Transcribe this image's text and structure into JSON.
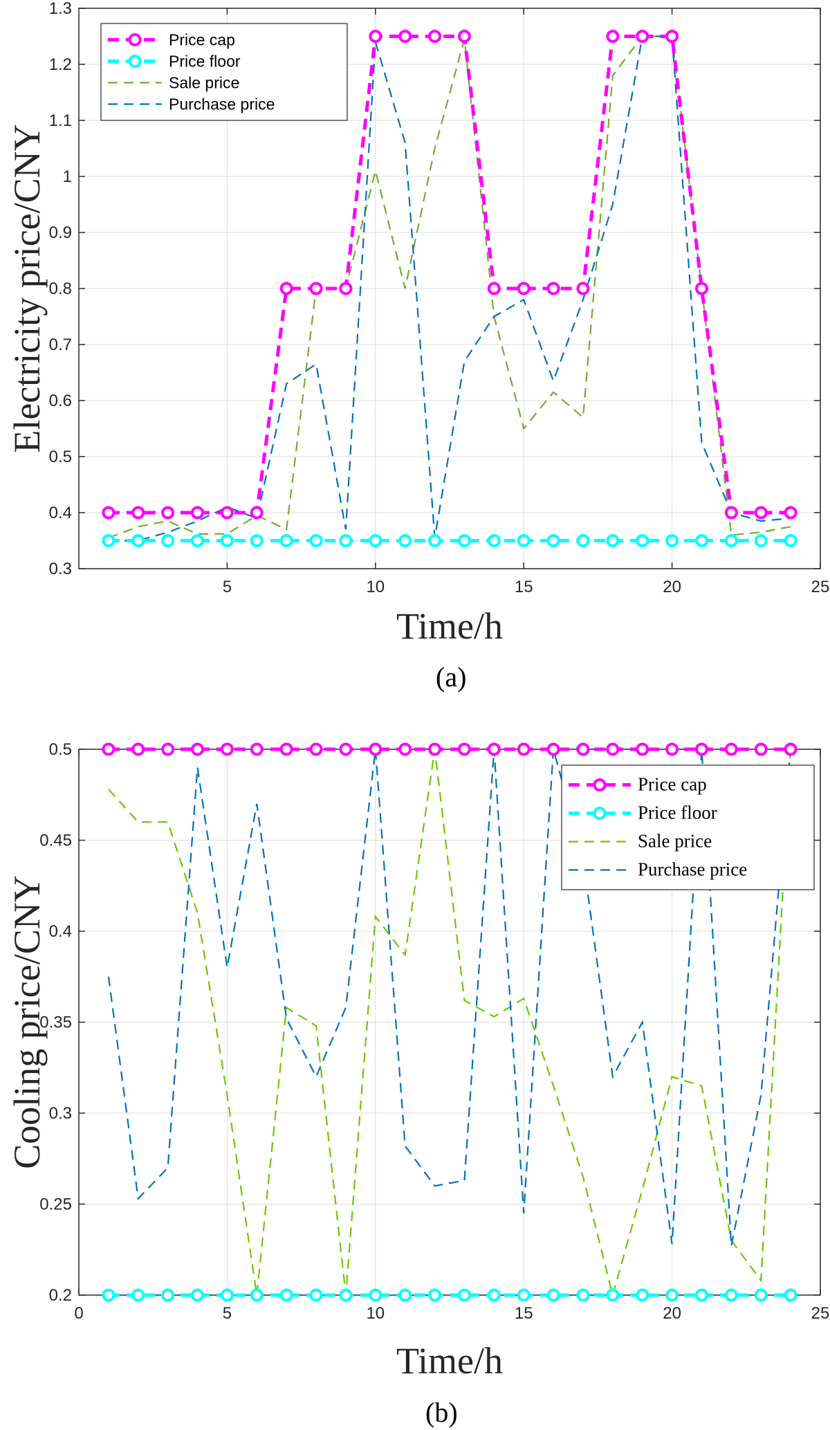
{
  "chart_data": [
    {
      "type": "line",
      "xlabel": "Time/h",
      "ylabel": "Electricity price/CNY",
      "xlim": [
        0,
        25
      ],
      "ylim": [
        0.3,
        1.3
      ],
      "xticks": [
        "5",
        "10",
        "15",
        "20",
        "25"
      ],
      "yticks": [
        "0.3",
        "0.4",
        "0.5",
        "0.6",
        "0.7",
        "0.8",
        "0.9",
        "1",
        "1.1",
        "1.2",
        "1.3"
      ],
      "grid": true,
      "legend_position": "top-left",
      "caption": "(a)",
      "x": [
        1,
        2,
        3,
        4,
        5,
        6,
        7,
        8,
        9,
        10,
        11,
        12,
        13,
        14,
        15,
        16,
        17,
        18,
        19,
        20,
        21,
        22,
        23,
        24
      ],
      "series": [
        {
          "name": "Price cap",
          "color": "#ff00ff",
          "style": "dashed-circle",
          "values": [
            0.4,
            0.4,
            0.4,
            0.4,
            0.4,
            0.4,
            0.8,
            0.8,
            0.8,
            1.25,
            1.25,
            1.25,
            1.25,
            0.8,
            0.8,
            0.8,
            0.8,
            1.25,
            1.25,
            1.25,
            0.8,
            0.4,
            0.4,
            0.4
          ]
        },
        {
          "name": "Price floor",
          "color": "#00ffff",
          "style": "dashed-circle",
          "values": [
            0.35,
            0.35,
            0.35,
            0.35,
            0.35,
            0.35,
            0.35,
            0.35,
            0.35,
            0.35,
            0.35,
            0.35,
            0.35,
            0.35,
            0.35,
            0.35,
            0.35,
            0.35,
            0.35,
            0.35,
            0.35,
            0.35,
            0.35,
            0.35
          ]
        },
        {
          "name": "Sale price",
          "color": "#77ac30",
          "style": "dashed",
          "values": [
            0.355,
            0.375,
            0.385,
            0.362,
            0.362,
            0.395,
            0.37,
            0.8,
            0.8,
            1.01,
            0.8,
            1.05,
            1.245,
            0.75,
            0.55,
            0.615,
            0.57,
            1.18,
            1.25,
            1.25,
            0.8,
            0.36,
            0.365,
            0.375
          ]
        },
        {
          "name": "Purchase price",
          "color": "#0072bd",
          "style": "dashed",
          "values": [
            0.35,
            0.35,
            0.365,
            0.385,
            0.41,
            0.39,
            0.63,
            0.665,
            0.37,
            1.24,
            1.06,
            0.355,
            0.67,
            0.75,
            0.78,
            0.635,
            0.78,
            0.95,
            1.25,
            1.25,
            0.525,
            0.4,
            0.385,
            0.39
          ]
        }
      ]
    },
    {
      "type": "line",
      "xlabel": "Time/h",
      "ylabel": "Cooling price/CNY",
      "xlim": [
        0,
        25
      ],
      "ylim": [
        0.2,
        0.5
      ],
      "xticks": [
        "0",
        "5",
        "10",
        "15",
        "20",
        "25"
      ],
      "yticks": [
        "0.2",
        "0.25",
        "0.3",
        "0.35",
        "0.4",
        "0.45",
        "0.5"
      ],
      "grid": true,
      "legend_position": "top-right",
      "caption": "(b)",
      "x": [
        1,
        2,
        3,
        4,
        5,
        6,
        7,
        8,
        9,
        10,
        11,
        12,
        13,
        14,
        15,
        16,
        17,
        18,
        19,
        20,
        21,
        22,
        23,
        24
      ],
      "series": [
        {
          "name": "Price cap",
          "color": "#ff00ff",
          "style": "dashed-circle",
          "values": [
            0.5,
            0.5,
            0.5,
            0.5,
            0.5,
            0.5,
            0.5,
            0.5,
            0.5,
            0.5,
            0.5,
            0.5,
            0.5,
            0.5,
            0.5,
            0.5,
            0.5,
            0.5,
            0.5,
            0.5,
            0.5,
            0.5,
            0.5,
            0.5
          ]
        },
        {
          "name": "Price floor",
          "color": "#00ffff",
          "style": "dashed-circle",
          "values": [
            0.2,
            0.2,
            0.2,
            0.2,
            0.2,
            0.2,
            0.2,
            0.2,
            0.2,
            0.2,
            0.2,
            0.2,
            0.2,
            0.2,
            0.2,
            0.2,
            0.2,
            0.2,
            0.2,
            0.2,
            0.2,
            0.2,
            0.2,
            0.2
          ]
        },
        {
          "name": "Sale price",
          "color": "#66cc00",
          "style": "dashed",
          "values": [
            0.478,
            0.46,
            0.46,
            0.41,
            0.31,
            0.2,
            0.358,
            0.348,
            0.2,
            0.408,
            0.387,
            0.5,
            0.362,
            0.353,
            0.363,
            0.315,
            0.265,
            0.2,
            0.258,
            0.32,
            0.315,
            0.23,
            0.208,
            0.5
          ]
        },
        {
          "name": "Purchase price",
          "color": "#0072bd",
          "style": "dashed",
          "values": [
            0.375,
            0.253,
            0.27,
            0.49,
            0.38,
            0.47,
            0.352,
            0.32,
            0.358,
            0.5,
            0.282,
            0.26,
            0.263,
            0.5,
            0.245,
            0.5,
            0.44,
            0.32,
            0.35,
            0.228,
            0.5,
            0.227,
            0.31,
            0.5
          ]
        }
      ]
    }
  ]
}
